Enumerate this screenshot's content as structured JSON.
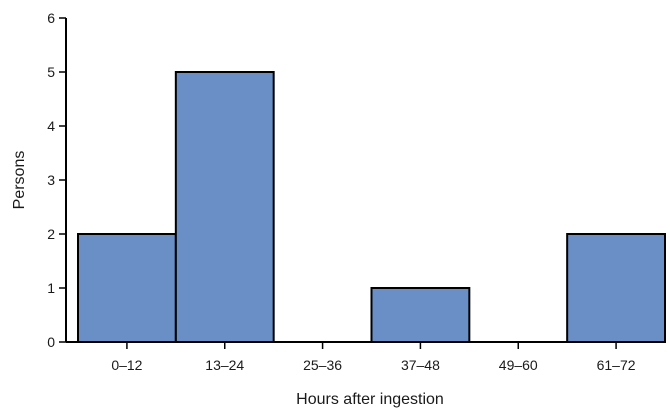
{
  "chart_data": {
    "type": "bar",
    "title": "",
    "xlabel": "Hours after ingestion",
    "ylabel": "Persons",
    "categories": [
      "0–12",
      "13–24",
      "25–36",
      "37–48",
      "49–60",
      "61–72"
    ],
    "values": [
      2,
      5,
      0,
      1,
      0,
      2
    ],
    "ylim": [
      0,
      6
    ],
    "yticks": [
      "0",
      "1",
      "2",
      "3",
      "4",
      "5",
      "6"
    ],
    "grid": false,
    "legend": "none",
    "bar_color": "#6a8fc7",
    "bar_edge_color": "#000000"
  }
}
